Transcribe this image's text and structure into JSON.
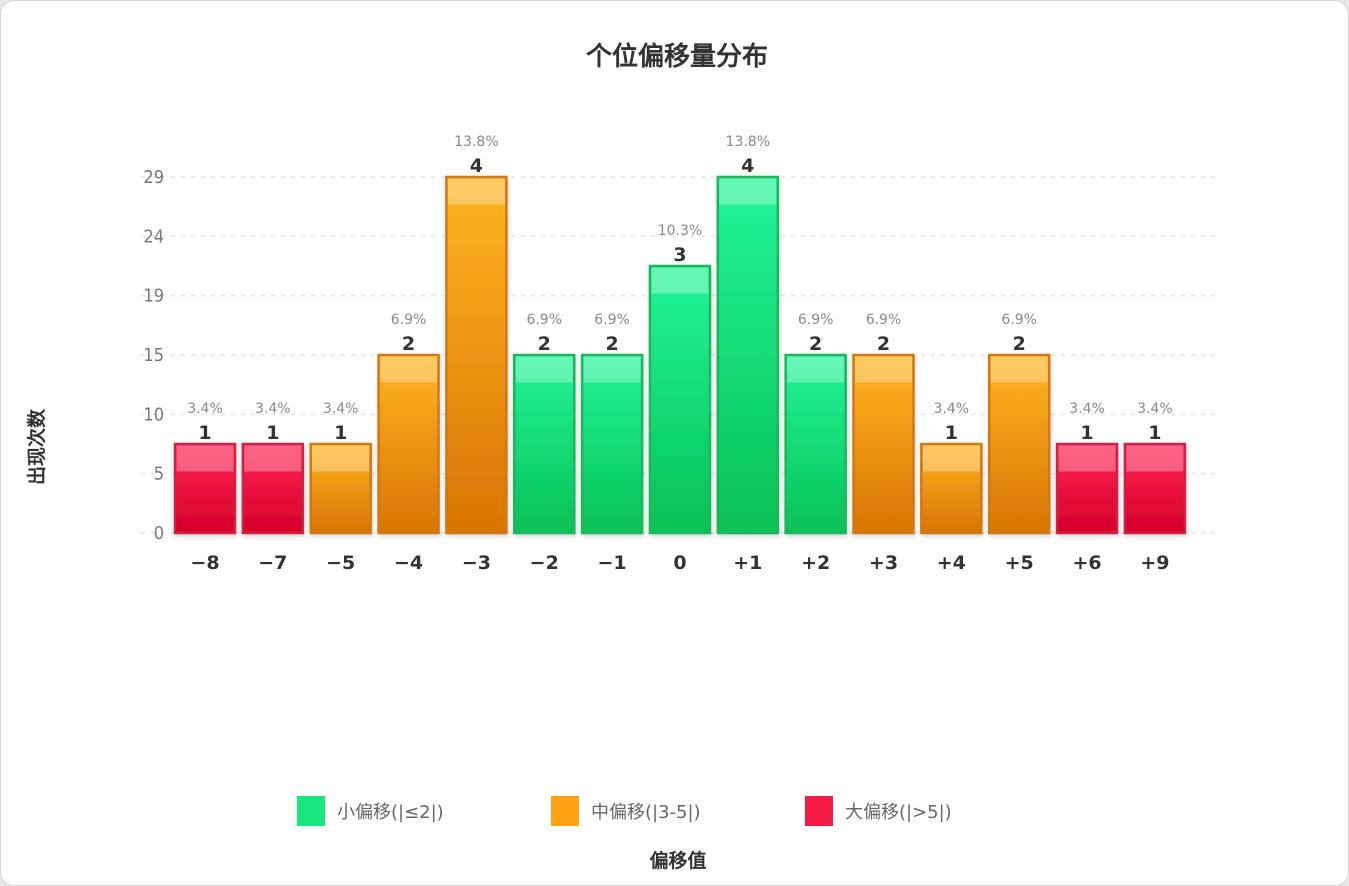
{
  "chart_data": {
    "type": "bar",
    "title": "个位偏移量分布",
    "xlabel": "偏移值",
    "ylabel": "出现次数",
    "categories": [
      "-8",
      "-7",
      "-5",
      "-4",
      "-3",
      "-2",
      "-1",
      "0",
      "+1",
      "+2",
      "+3",
      "+4",
      "+5",
      "+6",
      "+9"
    ],
    "values": [
      1,
      1,
      1,
      2,
      4,
      2,
      2,
      3,
      4,
      2,
      2,
      1,
      2,
      1,
      1
    ],
    "percent_labels": [
      "3.4%",
      "3.4%",
      "3.4%",
      "6.9%",
      "13.8%",
      "6.9%",
      "6.9%",
      "10.3%",
      "13.8%",
      "6.9%",
      "6.9%",
      "3.4%",
      "6.9%",
      "3.4%",
      "3.4%"
    ],
    "groups": [
      "large",
      "large",
      "medium",
      "medium",
      "medium",
      "small",
      "small",
      "small",
      "small",
      "small",
      "medium",
      "medium",
      "medium",
      "large",
      "large"
    ],
    "yticks": [
      "0",
      "5",
      "10",
      "15",
      "19",
      "24",
      "29"
    ],
    "ylim": [
      0,
      4
    ],
    "grid": true,
    "legend_position": "bottom",
    "legend": [
      {
        "key": "small",
        "label": "小偏移(|≤2|)",
        "color": "#19e67f"
      },
      {
        "key": "medium",
        "label": "中偏移(|3-5|)",
        "color": "#ffa312"
      },
      {
        "key": "large",
        "label": "大偏移(|>5|)",
        "color": "#f41a45"
      }
    ],
    "colors": {
      "small": {
        "top": "#22f59a",
        "bottom": "#07c155",
        "stroke": "#1ab75f"
      },
      "medium": {
        "top": "#ffb522",
        "bottom": "#d97403",
        "stroke": "#cf7a14"
      },
      "large": {
        "top": "#ff2252",
        "bottom": "#d5002a",
        "stroke": "#d02445"
      }
    }
  }
}
